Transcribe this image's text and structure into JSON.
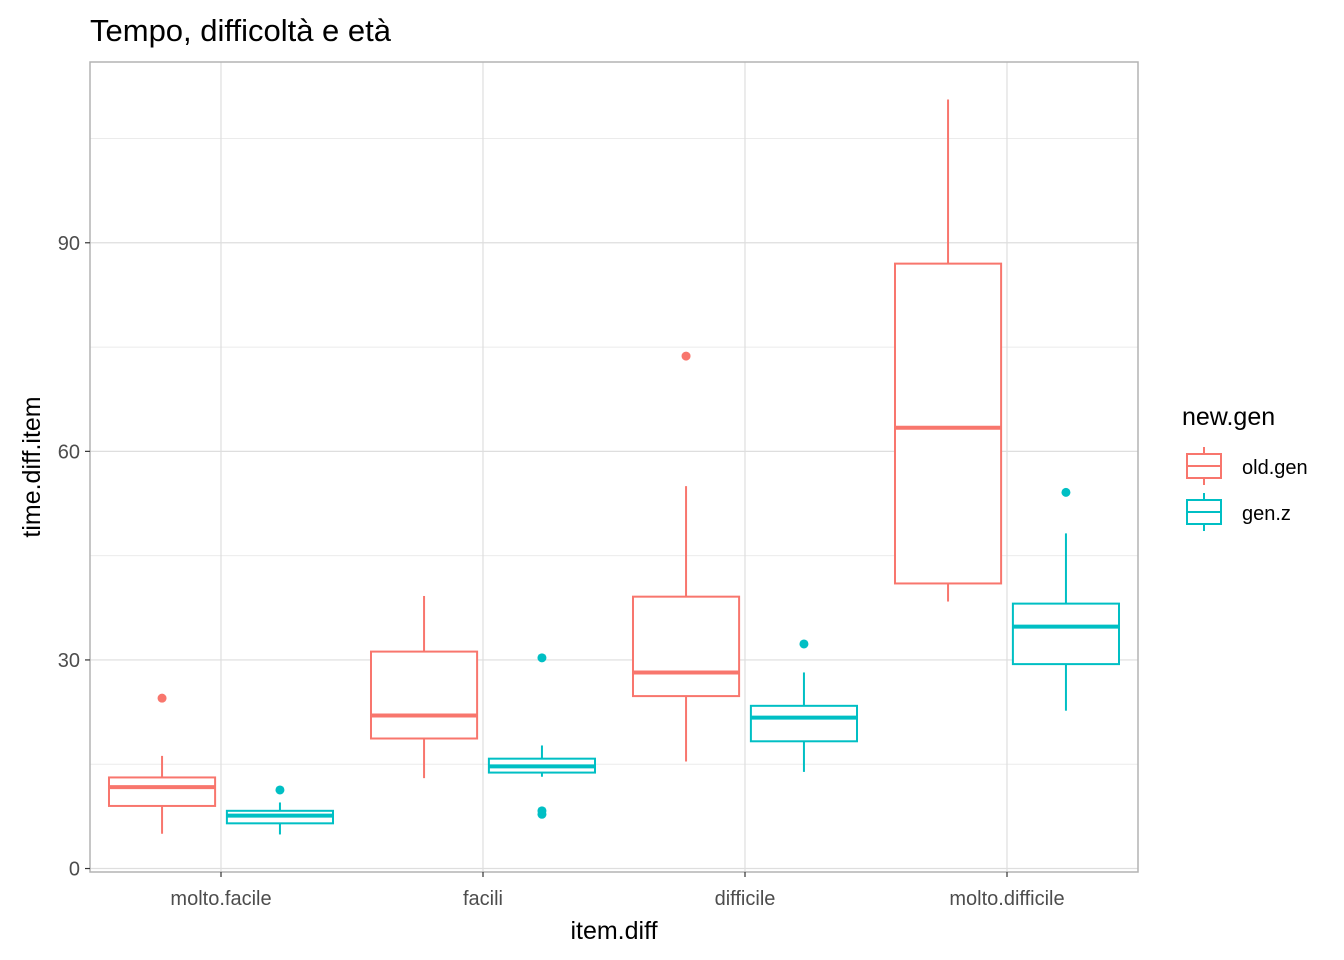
{
  "chart_data": {
    "type": "boxplot",
    "title": "Tempo, difficoltà e età",
    "xlabel": "item.diff",
    "ylabel": "time.diff.item",
    "categories": [
      "molto.facile",
      "facili",
      "difficile",
      "molto.difficile"
    ],
    "yticks": [
      0,
      30,
      60,
      90
    ],
    "ylim": [
      -0.5,
      116
    ],
    "grid": true,
    "legend": {
      "title": "new.gen",
      "position": "right"
    },
    "series": [
      {
        "name": "old.gen",
        "color": "#F8766D",
        "boxes": [
          {
            "category": "molto.facile",
            "whisker_low": 5.0,
            "q1": 9.0,
            "median": 11.7,
            "q3": 13.1,
            "whisker_high": 16.2,
            "outliers": [
              24.5
            ]
          },
          {
            "category": "facili",
            "whisker_low": 13.0,
            "q1": 18.7,
            "median": 22.0,
            "q3": 31.2,
            "whisker_high": 39.2,
            "outliers": []
          },
          {
            "category": "difficile",
            "whisker_low": 15.4,
            "q1": 24.8,
            "median": 28.2,
            "q3": 39.1,
            "whisker_high": 55.0,
            "outliers": [
              73.7
            ]
          },
          {
            "category": "molto.difficile",
            "whisker_low": 38.4,
            "q1": 41.0,
            "median": 63.4,
            "q3": 87.0,
            "whisker_high": 110.6,
            "outliers": []
          }
        ]
      },
      {
        "name": "gen.z",
        "color": "#00BFC4",
        "boxes": [
          {
            "category": "molto.facile",
            "whisker_low": 4.9,
            "q1": 6.5,
            "median": 7.6,
            "q3": 8.3,
            "whisker_high": 9.5,
            "outliers": [
              11.3
            ]
          },
          {
            "category": "facili",
            "whisker_low": 13.2,
            "q1": 13.8,
            "median": 14.7,
            "q3": 15.8,
            "whisker_high": 17.7,
            "outliers": [
              30.3,
              8.3,
              7.8
            ]
          },
          {
            "category": "difficile",
            "whisker_low": 13.9,
            "q1": 18.3,
            "median": 21.7,
            "q3": 23.4,
            "whisker_high": 28.2,
            "outliers": [
              32.3
            ]
          },
          {
            "category": "molto.difficile",
            "whisker_low": 22.7,
            "q1": 29.4,
            "median": 34.8,
            "q3": 38.1,
            "whisker_high": 48.2,
            "outliers": [
              54.1
            ]
          }
        ]
      }
    ]
  }
}
